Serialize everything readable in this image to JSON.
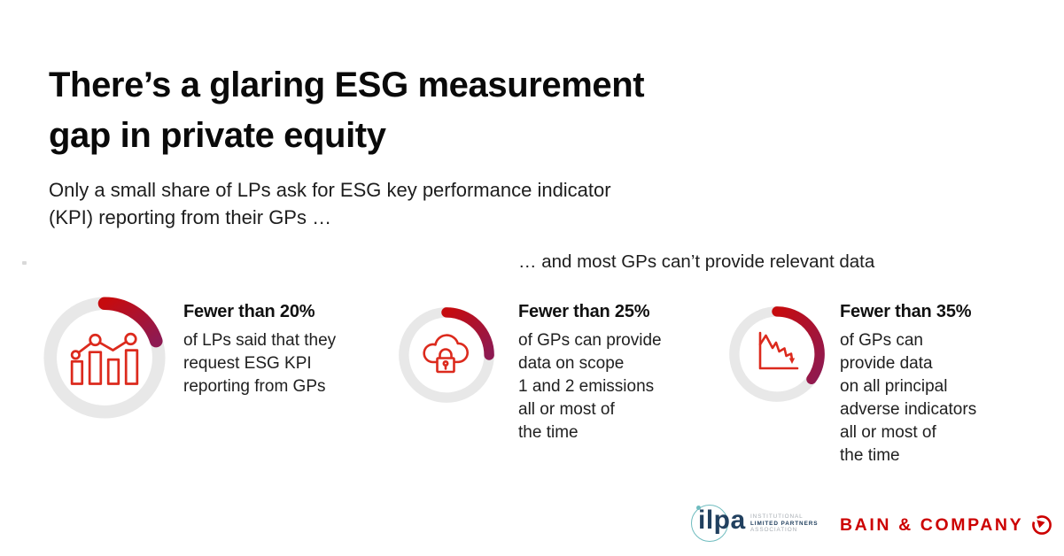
{
  "header": {
    "title": "There’s a glaring ESG measurement\ngap in private equity",
    "subtitle": "Only a small share of LPs ask for ESG key performance indicator\n(KPI) reporting from their GPs …",
    "right_note": "… and most GPs can’t provide relevant data"
  },
  "gauges": [
    {
      "icon": "bar-line-chart-icon",
      "percent": 20,
      "headline": "Fewer than 20%",
      "body": "of LPs said that they\nrequest ESG KPI\nreporting from GPs"
    },
    {
      "icon": "cloud-lock-icon",
      "percent": 25,
      "headline": "Fewer than 25%",
      "body": "of GPs can provide\ndata on scope\n1 and 2 emissions\nall or most of\nthe time"
    },
    {
      "icon": "declining-chart-icon",
      "percent": 35,
      "headline": "Fewer than 35%",
      "body": "of GPs can\nprovide data\non all principal\nadverse indicators\nall or most of\nthe time"
    }
  ],
  "chart_data": [
    {
      "type": "pie",
      "subtype": "donut-gauge",
      "title": "Fewer than 20%",
      "categories": [
        "highlighted",
        "remainder"
      ],
      "values": [
        20,
        80
      ],
      "annotation": "of LPs said that they request ESG KPI reporting from GPs",
      "legend": "none",
      "start_angle_deg": 0,
      "direction": "clockwise"
    },
    {
      "type": "pie",
      "subtype": "donut-gauge",
      "title": "Fewer than 25%",
      "categories": [
        "highlighted",
        "remainder"
      ],
      "values": [
        25,
        75
      ],
      "annotation": "of GPs can provide data on scope 1 and 2 emissions all or most of the time",
      "legend": "none",
      "start_angle_deg": 0,
      "direction": "clockwise"
    },
    {
      "type": "pie",
      "subtype": "donut-gauge",
      "title": "Fewer than 35%",
      "categories": [
        "highlighted",
        "remainder"
      ],
      "values": [
        35,
        65
      ],
      "annotation": "of GPs can provide data on all principal adverse indicators all or most of the time",
      "legend": "none",
      "start_angle_deg": 0,
      "direction": "clockwise"
    }
  ],
  "footer": {
    "ilpa": {
      "wordmark": "ilpa",
      "line1": "INSTITUTIONAL",
      "line2": "LIMITED PARTNERS",
      "line3": "ASSOCIATION"
    },
    "bain": {
      "wordmark": "BAIN & COMPANY"
    }
  },
  "colors": {
    "arc_start": "#c60b0e",
    "arc_end": "#8e1a52",
    "ring": "#e8e8e8",
    "icon_red": "#dc2a1d",
    "bain_red": "#cc0000",
    "ilpa_navy": "#21405f",
    "ilpa_teal": "#6fbcbf",
    "ilpa_gray": "#a7adb3"
  }
}
